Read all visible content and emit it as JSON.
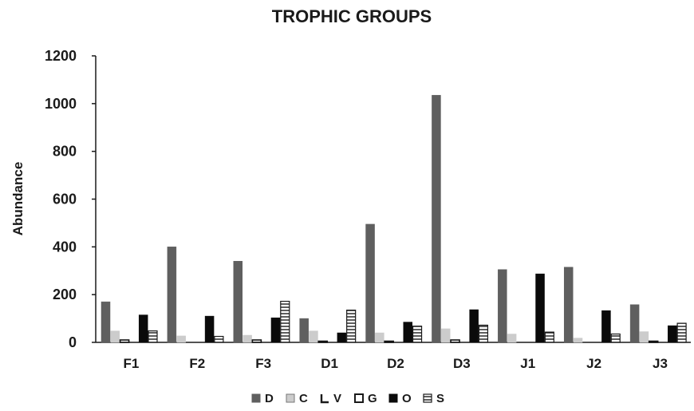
{
  "chart_data": {
    "type": "bar",
    "title": "TROPHIC GROUPS",
    "xlabel": "",
    "ylabel": "Abundance",
    "ylim": [
      0,
      1200
    ],
    "yticks": [
      0,
      200,
      400,
      600,
      800,
      1000,
      1200
    ],
    "grid": false,
    "legend_position": "bottom",
    "categories": [
      "F1",
      "F2",
      "F3",
      "D1",
      "D2",
      "D3",
      "J1",
      "J2",
      "J3"
    ],
    "series": [
      {
        "name": "D",
        "color": "#5f5f5f",
        "pattern": "solid",
        "values": [
          170,
          400,
          340,
          100,
          495,
          1035,
          305,
          315,
          158
        ]
      },
      {
        "name": "C",
        "color": "#cccccc",
        "pattern": "solid",
        "values": [
          48,
          27,
          30,
          48,
          40,
          57,
          35,
          18,
          45
        ]
      },
      {
        "name": "V",
        "color": "#111111",
        "pattern": "outline",
        "values": [
          10,
          0,
          10,
          5,
          5,
          10,
          0,
          0,
          5
        ]
      },
      {
        "name": "G",
        "color": "#ffffff",
        "pattern": "hollow",
        "values": [
          0,
          0,
          0,
          0,
          0,
          0,
          0,
          0,
          0
        ]
      },
      {
        "name": "O",
        "color": "#0a0a0a",
        "pattern": "solid",
        "values": [
          115,
          110,
          103,
          40,
          85,
          137,
          287,
          133,
          70
        ]
      },
      {
        "name": "S",
        "color": "#ffffff",
        "pattern": "stripes",
        "values": [
          48,
          25,
          172,
          135,
          68,
          72,
          43,
          35,
          80
        ]
      }
    ]
  }
}
